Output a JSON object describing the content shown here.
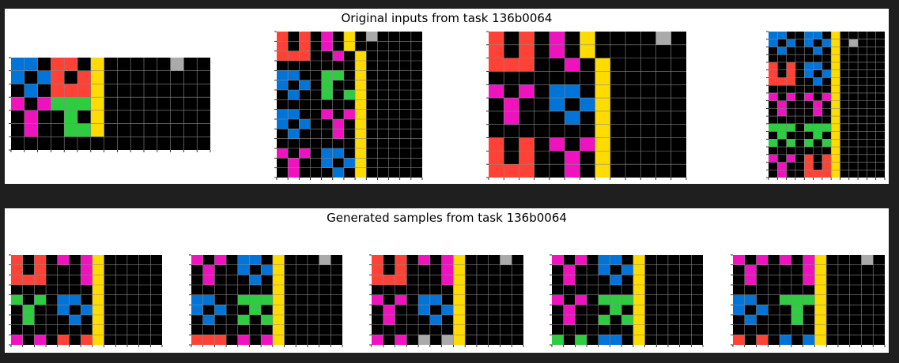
{
  "colors": {
    "0": "#000000",
    "1": "#0074D9",
    "2": "#FF4136",
    "3": "#2ECC40",
    "4": "#FFDC00",
    "5": "#AAAAAA",
    "6": "#F012BE",
    "page_background": "#1f1f1f",
    "panel_background": "#ffffff",
    "grid_line": "#8a8a8a"
  },
  "top_panel": {
    "title": "Original inputs from task 136b0064",
    "grids": [
      {
        "name": "input-1",
        "rows": [
          "110220400000500",
          "101202400000000",
          "010222400000000",
          "606333400000000",
          "060030400000000",
          "060033400000000",
          "000000000000000"
        ]
      },
      {
        "name": "input-2",
        "rows": [
          "2020604050000",
          "2020604000000",
          "2220060400000",
          "0000000400000",
          "1100330400000",
          "1010300400000",
          "0100303400000",
          "0000000400000",
          "1100606400000",
          "1010060400000",
          "0100060400000",
          "0000000400000",
          "6060110400000",
          "0600101400000",
          "0600010400000"
        ]
      },
      {
        "name": "input-3",
        "rows": [
          "2020604000050",
          "2020604000000",
          "2220060400000",
          "0000000400000",
          "6060110400000",
          "0600101400000",
          "0600010400000",
          "0000000400000",
          "2020606400000",
          "2020060400000",
          "2220060400000"
        ]
      },
      {
        "name": "input-4",
        "rows": [
          "1100110400000",
          "1010101405000",
          "0100010400000",
          "0000000400000",
          "2020110400000",
          "2020101400000",
          "2220010400000",
          "0000000400000",
          "6060606400000",
          "0600060400000",
          "0600060400000",
          "0000000400000",
          "3330333400000",
          "0300030400000",
          "3030303400000",
          "0000000400000",
          "6060202400000",
          "0600202400000",
          "0600222400000"
        ]
      }
    ]
  },
  "bottom_panel": {
    "title": "Generated samples from task 136b0064",
    "grids": [
      {
        "name": "sample-1",
        "rows": [
          "2020606400000",
          "2020006400000",
          "2220006400000",
          "0000000400000",
          "3030110400000",
          "0300101400000",
          "0300010400000",
          "0000000400000",
          "6060202400000"
        ]
      },
      {
        "name": "sample-2",
        "rows": [
          "6060110400050",
          "0600101400000",
          "0600010400000",
          "0000000400000",
          "1100333400000",
          "1010030400000",
          "0100303400000",
          "0000000400000",
          "2220606400000"
        ]
      },
      {
        "name": "sample-3",
        "rows": [
          "2020606400050",
          "2020006400000",
          "2220006400000",
          "0000000400000",
          "6060110400000",
          "0600101400000",
          "0600010400000",
          "0000000400000",
          "6060505400000"
        ]
      },
      {
        "name": "sample-4",
        "rows": [
          "6060110400000",
          "0600101400000",
          "0600010400000",
          "0000000400000",
          "6060333400000",
          "0600030400000",
          "0600303400000",
          "0000000400000",
          "3030110400000"
        ]
      },
      {
        "name": "sample-5",
        "rows": [
          "6060606400050",
          "0600006400000",
          "0600006400000",
          "0000000400000",
          "1100333400000",
          "1010030400000",
          "0100030400000",
          "0000000400000",
          "2020101400000"
        ]
      }
    ]
  }
}
